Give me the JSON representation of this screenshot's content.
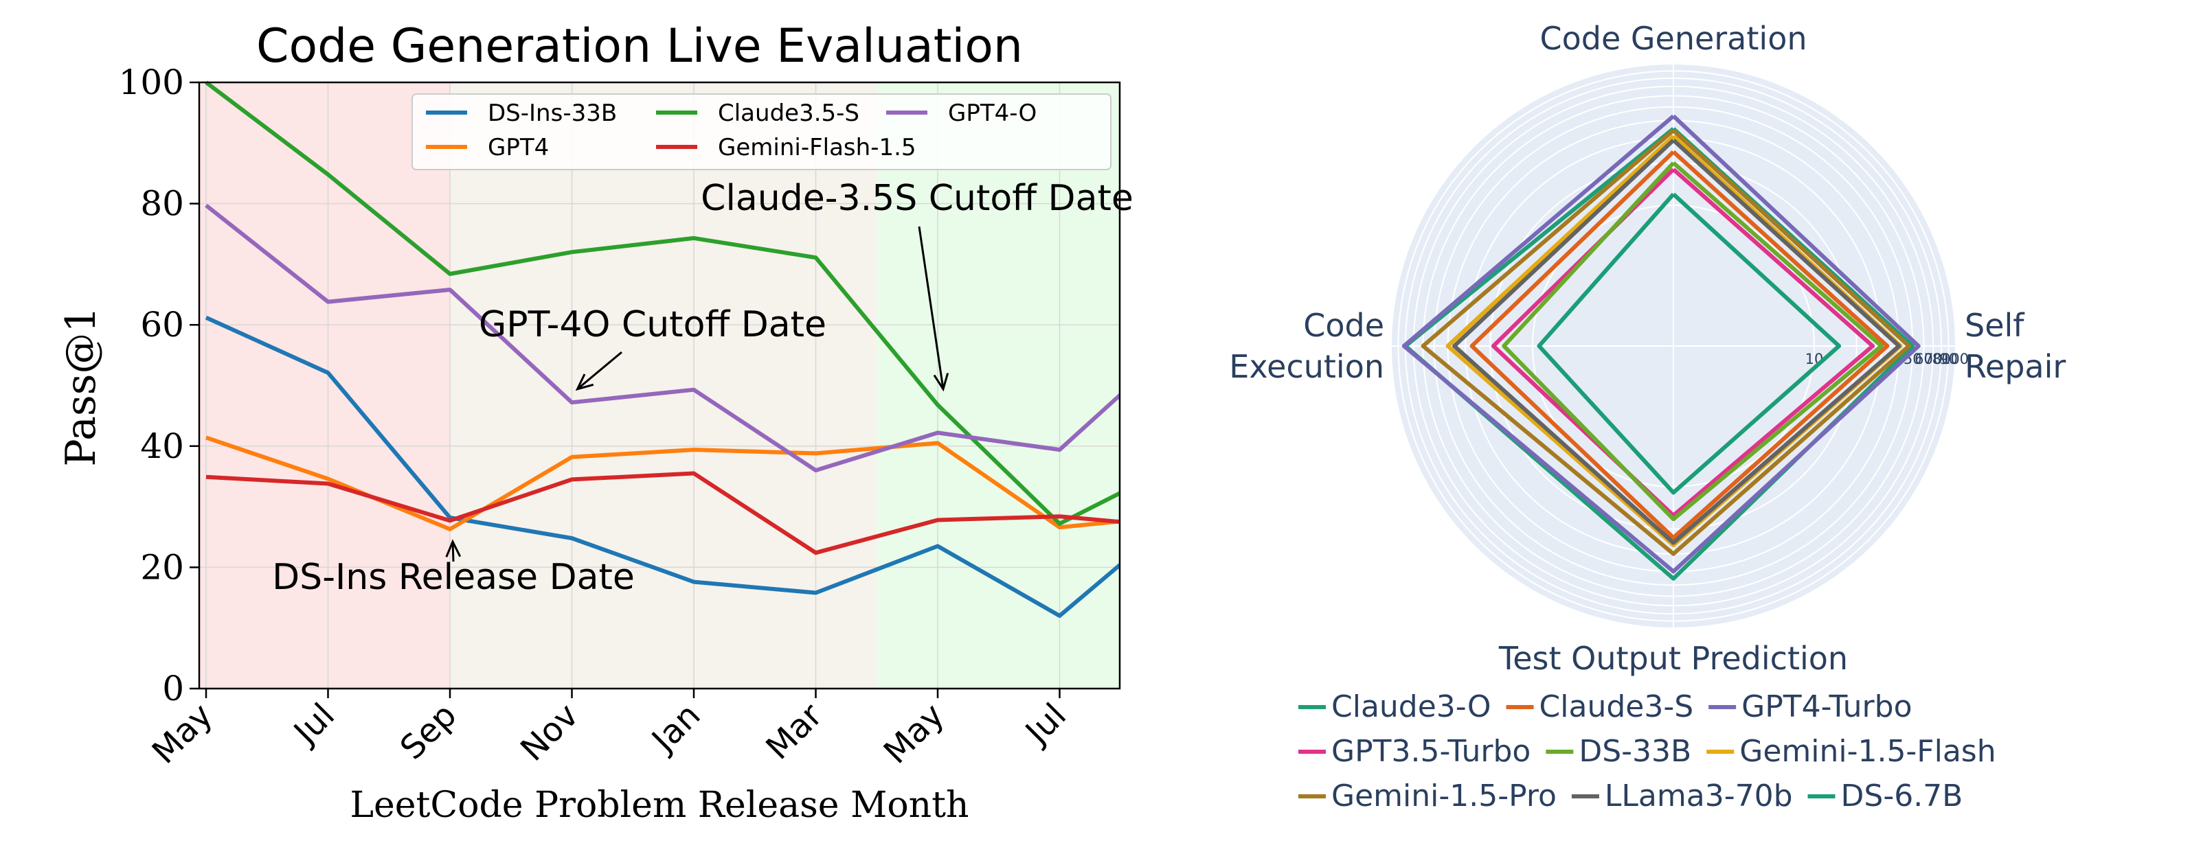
{
  "chart_data": [
    {
      "type": "line",
      "title": "Code Generation Live Evaluation",
      "xlabel": "LeetCode Problem Release Month",
      "ylabel": "Pass@1",
      "categories": [
        "May",
        "Jul",
        "Sep",
        "Nov",
        "Jan",
        "Mar",
        "May",
        "Jul"
      ],
      "x_extent": [
        0,
        7.5
      ],
      "ylim": [
        0,
        100
      ],
      "yticks": [
        0,
        20,
        40,
        60,
        80,
        100
      ],
      "grid": true,
      "legend_position": "top-right",
      "series": [
        {
          "name": "DS-Ins-33B",
          "color": "#1f77b4",
          "x": [
            0,
            1,
            2,
            3,
            4,
            5,
            6,
            7,
            7.5
          ],
          "values": [
            61.2,
            52.1,
            28.2,
            24.8,
            17.6,
            15.8,
            23.5,
            12.0,
            20.5
          ]
        },
        {
          "name": "GPT4",
          "color": "#ff7f0e",
          "x": [
            0,
            1,
            2,
            3,
            4,
            5,
            6,
            7,
            7.5
          ],
          "values": [
            41.4,
            34.6,
            26.3,
            38.2,
            39.4,
            38.8,
            40.5,
            26.6,
            27.6
          ]
        },
        {
          "name": "Claude3.5-S",
          "color": "#2ca02c",
          "x": [
            0,
            1,
            2,
            3,
            4,
            5,
            6,
            7,
            7.5
          ],
          "values": [
            100.0,
            84.8,
            68.4,
            72.0,
            74.3,
            71.1,
            46.8,
            27.2,
            32.3
          ]
        },
        {
          "name": "Gemini-Flash-1.5",
          "color": "#d62728",
          "x": [
            0,
            1,
            2,
            3,
            4,
            5,
            6,
            7,
            7.5
          ],
          "values": [
            34.9,
            33.8,
            27.7,
            34.5,
            35.5,
            22.4,
            27.8,
            28.4,
            27.5
          ]
        },
        {
          "name": "GPT4-O",
          "color": "#9467bd",
          "x": [
            0,
            1,
            2,
            3,
            4,
            5,
            6,
            7,
            7.5
          ],
          "values": [
            79.7,
            63.8,
            65.8,
            47.2,
            49.3,
            36.0,
            42.2,
            39.4,
            48.5
          ]
        }
      ],
      "shaded_regions": [
        {
          "from": -0.05,
          "to": 2,
          "color": "#fde6e6"
        },
        {
          "from": 2,
          "to": 5.5,
          "color": "#f6f2ec"
        },
        {
          "from": 5.5,
          "to": 7.5,
          "color": "#e9fce9"
        }
      ],
      "annotations": [
        {
          "text": "Claude-3.5S Cutoff Date",
          "point_x": 6,
          "point_y": 48.5
        },
        {
          "text": "GPT-4O Cutoff Date",
          "point_x": 3,
          "point_y": 48.5
        },
        {
          "text": "DS-Ins Release Date",
          "point_x": 2,
          "point_y": 26.5
        }
      ]
    },
    {
      "type": "radar",
      "axes": [
        "Code Generation",
        "Self Repair",
        "Test Output Prediction",
        "Code Execution"
      ],
      "radial_ticks": [
        10,
        50,
        60,
        70,
        80,
        90,
        100
      ],
      "radial_scale": "logarithmic",
      "radial_range": [
        1,
        100
      ],
      "series": [
        {
          "name": "Claude3-O",
          "color": "#1f9e77",
          "values": [
            35,
            50,
            45,
            80
          ]
        },
        {
          "name": "Claude3-S",
          "color": "#e0621b",
          "values": [
            24,
            33,
            23,
            27
          ]
        },
        {
          "name": "GPT4-Turbo",
          "color": "#7869b8",
          "values": [
            43,
            55,
            40,
            82
          ]
        },
        {
          "name": "GPT3.5-Turbo",
          "color": "#e0338a",
          "values": [
            18,
            26,
            16,
            19
          ]
        },
        {
          "name": "DS-33B",
          "color": "#6aab2a",
          "values": [
            20,
            30,
            17,
            16
          ]
        },
        {
          "name": "Gemini-1.5-Flash",
          "color": "#e5ab14",
          "values": [
            31,
            41,
            26,
            40
          ]
        },
        {
          "name": "Gemini-1.5-Pro",
          "color": "#a67a22",
          "values": [
            34,
            47,
            30,
            60
          ]
        },
        {
          "name": "LLama3-70b",
          "color": "#636363",
          "values": [
            29,
            40,
            25,
            36
          ]
        },
        {
          "name": "DS-6.7B",
          "color": "#1b9e77",
          "values": [
            12,
            15,
            11,
            9
          ]
        }
      ]
    }
  ]
}
